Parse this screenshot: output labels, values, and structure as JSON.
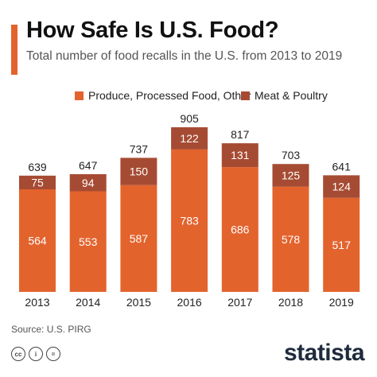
{
  "header": {
    "title": "How Safe Is U.S. Food?",
    "subtitle": "Total number of food recalls in the U.S. from 2013 to 2019"
  },
  "colors": {
    "accent": "#e3632d",
    "produce": "#e3632d",
    "meat": "#a64b33"
  },
  "chart_data": {
    "type": "bar",
    "stacked": true,
    "categories": [
      "2013",
      "2014",
      "2015",
      "2016",
      "2017",
      "2018",
      "2019"
    ],
    "series": [
      {
        "name": "Produce, Processed Food, Other",
        "values": [
          564,
          553,
          587,
          783,
          686,
          578,
          517
        ]
      },
      {
        "name": "Meat & Poultry",
        "values": [
          75,
          94,
          150,
          122,
          131,
          125,
          124
        ]
      }
    ],
    "totals": [
      639,
      647,
      737,
      905,
      817,
      703,
      641
    ],
    "ylim": [
      0,
      905
    ],
    "legend_position": "top",
    "grid": false
  },
  "footer": {
    "source": "Source: U.S. PIRG",
    "license_icons": [
      "creative-commons-icon",
      "attribution-icon",
      "no-derivatives-icon"
    ],
    "logo": "statista"
  }
}
